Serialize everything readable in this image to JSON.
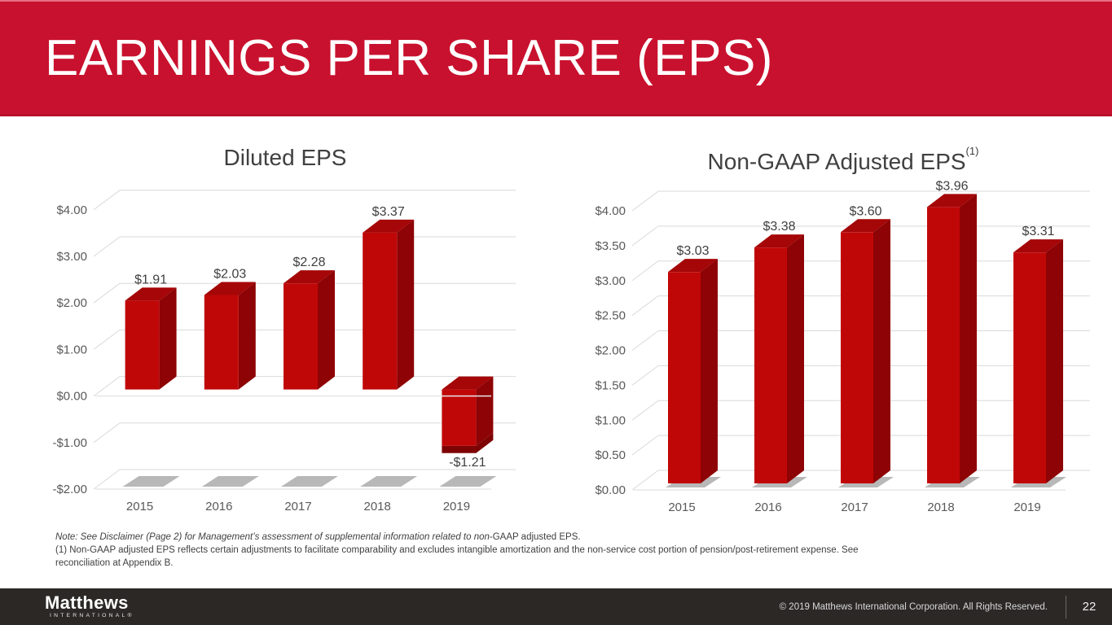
{
  "slide": {
    "title": "EARNINGS PER SHARE (EPS)"
  },
  "footnotes": {
    "line1_italic": "Note: See Disclaimer (Page 2) for Management’s assessment of supplemental information related to non",
    "line1_regular": "-GAAP adjusted EPS.",
    "line2": "(1) Non-GAAP adjusted EPS reflects certain adjustments to facilitate comparability and excludes intangible amortization and the non-service cost portion of pension/post-retirement expense. See",
    "line3": "reconciliation at Appendix B."
  },
  "footer": {
    "logo_primary": "Matthews",
    "logo_secondary": "INTERNATIONAL®",
    "copyright": "© 2019 Matthews International Corporation. All Rights Reserved.",
    "page_number": "22"
  },
  "colors": {
    "banner_red": "#C8112E",
    "bar_front": "#C00708",
    "bar_side": "#8E0305",
    "bar_top": "#A50607",
    "bar_bottom": "#7E0304",
    "grid": "#D9D9D9",
    "zero_line": "#E8E8E8",
    "shadow": "#A6A6A6",
    "axis_text": "#595959",
    "data_label_text": "#3F3F3F",
    "title_text": "#404040",
    "footer_bg": "#2B2826"
  },
  "chart_data": [
    {
      "type": "bar",
      "style": "3d-column",
      "id": "diluted-eps",
      "title": "Diluted EPS",
      "categories": [
        "2015",
        "2016",
        "2017",
        "2018",
        "2019"
      ],
      "values": [
        1.91,
        2.03,
        2.28,
        3.37,
        -1.21
      ],
      "labels": [
        "$1.91",
        "$2.03",
        "$2.28",
        "$3.37",
        "-$1.21"
      ],
      "ylim": [
        -2,
        4
      ],
      "ytick_step": 1,
      "yticks": {
        "values": [
          4,
          3,
          2,
          1,
          0,
          -1,
          -2
        ],
        "labels": [
          "$4.00",
          "$3.00",
          "$2.00",
          "$1.00",
          "$0.00",
          "-$1.00",
          "-$2.00"
        ]
      },
      "grid": true,
      "legend": false,
      "xlabel": "",
      "ylabel": ""
    },
    {
      "type": "bar",
      "style": "3d-column",
      "id": "non-gaap-adjusted-eps",
      "title": "Non-GAAP Adjusted EPS",
      "title_superscript": "(1)",
      "categories": [
        "2015",
        "2016",
        "2017",
        "2018",
        "2019"
      ],
      "values": [
        3.03,
        3.38,
        3.6,
        3.96,
        3.31
      ],
      "labels": [
        "$3.03",
        "$3.38",
        "$3.60",
        "$3.96",
        "$3.31"
      ],
      "ylim": [
        0,
        4
      ],
      "ytick_step": 0.5,
      "yticks": {
        "values": [
          4,
          3.5,
          3,
          2.5,
          2,
          1.5,
          1,
          0.5,
          0
        ],
        "labels": [
          "$4.00",
          "$3.50",
          "$3.00",
          "$2.50",
          "$2.00",
          "$1.50",
          "$1.00",
          "$0.50",
          "$0.00"
        ]
      },
      "grid": true,
      "legend": false,
      "xlabel": "",
      "ylabel": ""
    }
  ]
}
